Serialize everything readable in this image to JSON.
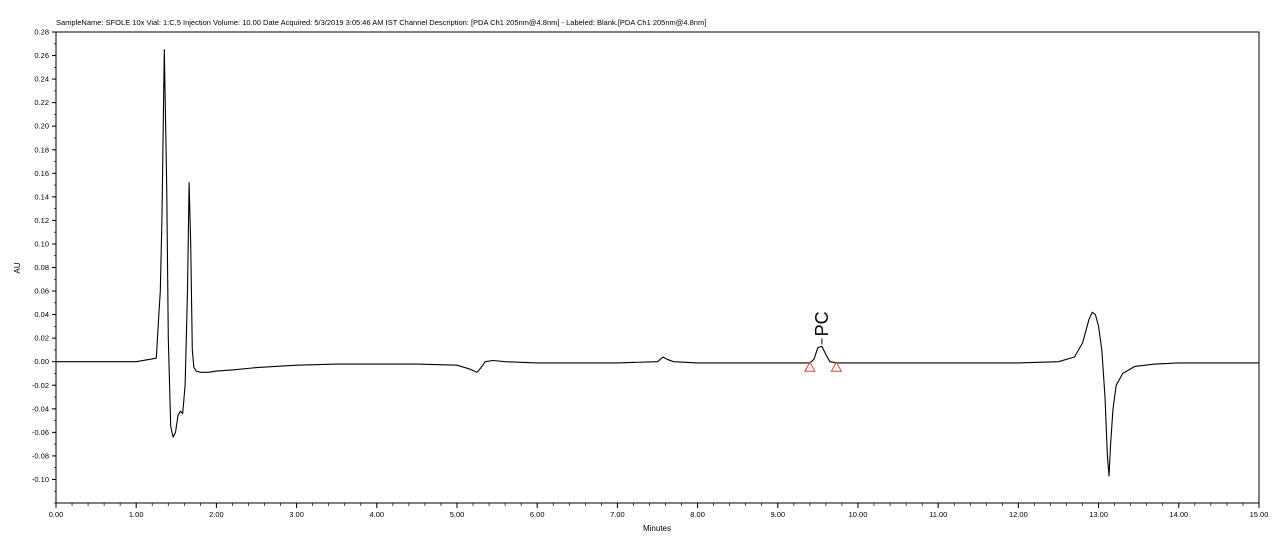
{
  "chart_data": {
    "type": "line",
    "title": "SampleName: SFOLE 10x Vial: 1:C,5 Injection Volume: 10.00 Date Acquired: 5/3/2019 3:05:46 AM IST Channel Description: [PDA Ch1 205nm@4.8nm] - Labeled: Blank.[PDA Ch1 205nm@4.8nm]",
    "xlabel": "Minutes",
    "ylabel": "AU",
    "xlim": [
      0,
      15
    ],
    "ylim": [
      -0.12,
      0.28
    ],
    "x_ticks": [
      "0.00",
      "1.00",
      "2.00",
      "3.00",
      "4.00",
      "5.00",
      "6.00",
      "7.00",
      "8.00",
      "9.00",
      "10.00",
      "11.00",
      "12.00",
      "13.00",
      "14.00",
      "15.00"
    ],
    "y_ticks": [
      "0.28",
      "0.26",
      "0.24",
      "0.22",
      "0.20",
      "0.18",
      "0.16",
      "0.14",
      "0.12",
      "0.10",
      "0.08",
      "0.06",
      "0.04",
      "0.02",
      "0.00",
      "-0.02",
      "-0.04",
      "-0.06",
      "-0.08",
      "-0.10"
    ],
    "grid": false,
    "line_color": "#000000",
    "marker_color": "#e8423a",
    "series": [
      {
        "x": [
          0.0,
          0.6,
          1.0,
          1.25,
          1.28,
          1.3,
          1.32,
          1.35,
          1.38,
          1.4,
          1.43,
          1.46,
          1.49,
          1.52,
          1.55,
          1.58,
          1.61,
          1.64,
          1.66,
          1.68,
          1.7,
          1.72,
          1.75,
          1.8,
          1.9,
          2.0,
          2.2,
          2.5,
          3.0,
          3.5,
          4.0,
          4.5,
          5.0,
          5.15,
          5.25,
          5.3,
          5.35,
          5.45,
          5.6,
          6.0,
          7.0,
          7.5,
          7.57,
          7.62,
          7.7,
          8.0,
          9.0,
          9.4,
          9.45,
          9.5,
          9.55,
          9.6,
          9.65,
          9.73,
          10.0,
          11.0,
          12.0,
          12.5,
          12.7,
          12.8,
          12.88,
          12.92,
          12.96,
          13.0,
          13.04,
          13.08,
          13.11,
          13.13,
          13.15,
          13.18,
          13.22,
          13.3,
          13.45,
          13.7,
          14.0,
          15.0
        ],
        "y": [
          0.0,
          0.0,
          0.0,
          0.003,
          0.038,
          0.06,
          0.12,
          0.265,
          0.15,
          0.02,
          -0.055,
          -0.064,
          -0.06,
          -0.046,
          -0.042,
          -0.044,
          -0.02,
          0.06,
          0.152,
          0.1,
          0.01,
          -0.005,
          -0.008,
          -0.009,
          -0.009,
          -0.008,
          -0.007,
          -0.005,
          -0.003,
          -0.002,
          -0.002,
          -0.002,
          -0.003,
          -0.006,
          -0.009,
          -0.005,
          0.0,
          0.001,
          0.0,
          -0.001,
          -0.001,
          0.0,
          0.004,
          0.002,
          0.0,
          -0.001,
          -0.001,
          -0.001,
          0.002,
          0.012,
          0.013,
          0.006,
          0.0,
          -0.001,
          -0.001,
          -0.001,
          -0.001,
          0.0,
          0.004,
          0.016,
          0.036,
          0.042,
          0.04,
          0.03,
          0.01,
          -0.03,
          -0.08,
          -0.097,
          -0.07,
          -0.04,
          -0.02,
          -0.01,
          -0.004,
          -0.002,
          -0.001,
          -0.001
        ]
      }
    ],
    "peak_annotations": [
      {
        "label": "PC",
        "x": 9.55,
        "y": 0.013
      }
    ],
    "integration_markers": [
      {
        "x": 9.4,
        "y": -0.003
      },
      {
        "x": 9.73,
        "y": -0.003
      }
    ]
  }
}
